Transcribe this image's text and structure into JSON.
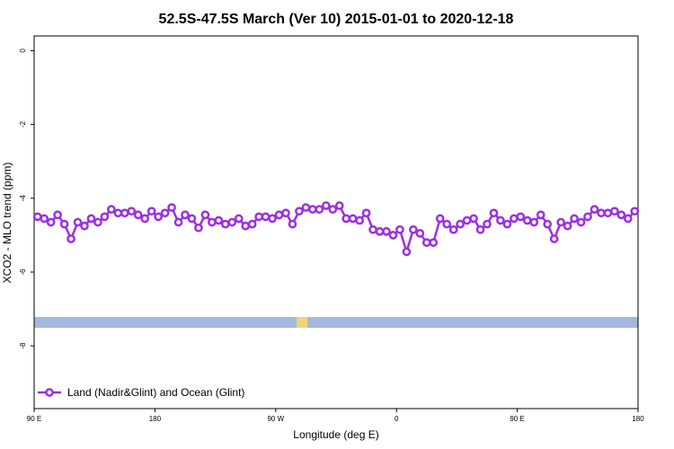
{
  "chart_data": {
    "type": "line",
    "title": "52.5S-47.5S March (Ver 10)   2015-01-01 to 2020-12-18",
    "x_label": "Longitude (deg E)",
    "y_label": "XCO2 - MLO trend (ppm)",
    "xlim": [
      90,
      540
    ],
    "ylim": [
      -9.7,
      0.4
    ],
    "xticks": [
      {
        "value": 90,
        "label": "90 E"
      },
      180,
      {
        "value": 270,
        "label": "90 W"
      },
      {
        "value": 360,
        "label": "0"
      },
      {
        "value": 450,
        "label": "90 E"
      },
      {
        "value": 540,
        "label": "180"
      }
    ],
    "yticks": [
      0,
      -2,
      -4,
      -6,
      -8
    ],
    "legend": "bottom-left",
    "x": [
      92.5,
      97.5,
      102.5,
      107.5,
      112.5,
      117.5,
      122.5,
      127.5,
      132.5,
      137.5,
      142.5,
      147.5,
      152.5,
      157.5,
      162.5,
      167.5,
      172.5,
      177.5,
      182.5,
      187.5,
      192.5,
      197.5,
      202.5,
      207.5,
      212.5,
      217.5,
      222.5,
      227.5,
      232.5,
      237.5,
      242.5,
      247.5,
      252.5,
      257.5,
      262.5,
      267.5,
      272.5,
      277.5,
      282.5,
      287.5,
      292.5,
      297.5,
      302.5,
      307.5,
      312.5,
      317.5,
      322.5,
      327.5,
      332.5,
      337.5,
      342.5,
      347.5,
      352.5,
      357.5,
      362.5,
      367.5,
      372.5,
      377.5,
      382.5,
      387.5,
      392.5,
      397.5,
      402.5,
      407.5,
      412.5,
      417.5,
      422.5,
      427.5,
      432.5,
      437.5,
      442.5,
      447.5,
      452.5,
      457.5,
      462.5,
      467.5,
      472.5,
      477.5,
      482.5,
      487.5,
      492.5,
      497.5,
      502.5,
      507.5,
      512.5,
      517.5,
      522.5,
      527.5,
      532.5,
      537.5
    ],
    "series": [
      {
        "name": "Land (Nadir&Glint) and Ocean (Glint)",
        "color": "#9b30e0",
        "values": [
          -4.5,
          -4.55,
          -4.65,
          -4.45,
          -4.7,
          -5.1,
          -4.65,
          -4.75,
          -4.55,
          -4.65,
          -4.5,
          -4.3,
          -4.4,
          -4.4,
          -4.35,
          -4.45,
          -4.55,
          -4.35,
          -4.5,
          -4.4,
          -4.25,
          -4.65,
          -4.45,
          -4.55,
          -4.8,
          -4.45,
          -4.65,
          -4.6,
          -4.7,
          -4.65,
          -4.55,
          -4.75,
          -4.7,
          -4.5,
          -4.5,
          -4.55,
          -4.45,
          -4.4,
          -4.7,
          -4.35,
          -4.25,
          -4.3,
          -4.3,
          -4.2,
          -4.3,
          -4.2,
          -4.55,
          -4.55,
          -4.6,
          -4.4,
          -4.85,
          -4.9,
          -4.9,
          -5.0,
          -4.85,
          -5.45,
          -4.85,
          -4.95,
          -5.2,
          -5.2,
          -4.55,
          -4.7,
          -4.85,
          -4.7,
          -4.6,
          -4.55,
          -4.85,
          -4.7,
          -4.4,
          -4.6,
          -4.7,
          -4.55,
          -4.5,
          -4.6,
          -4.65,
          -4.45,
          -4.7,
          -5.1,
          -4.65,
          -4.75,
          -4.55,
          -4.65,
          -4.5,
          -4.3,
          -4.4,
          -4.4,
          -4.35,
          -4.45,
          -4.55,
          -4.35
        ]
      }
    ]
  }
}
